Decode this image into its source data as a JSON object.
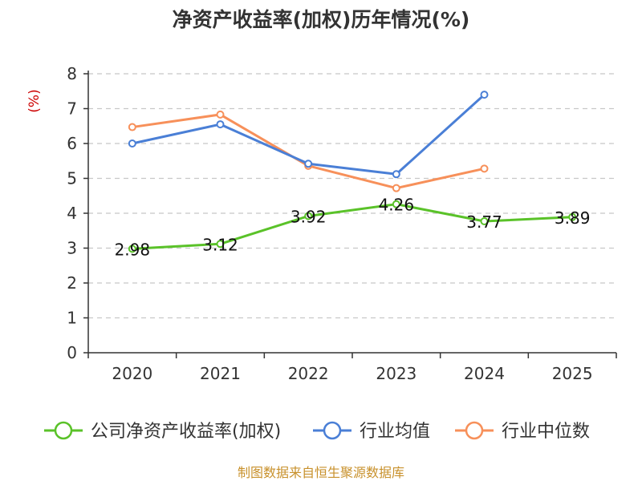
{
  "chart_data": {
    "type": "line",
    "title": "净资产收益率(加权)历年情况(%)",
    "ylabel": "(%)",
    "xlabel": "",
    "ylim": [
      0,
      8
    ],
    "y_ticks": [
      "0",
      "1",
      "2",
      "3",
      "4",
      "5",
      "6",
      "7",
      "8"
    ],
    "categories": [
      "2020",
      "2021",
      "2022",
      "2023",
      "2024",
      "2025"
    ],
    "grid": true,
    "legend_position": "bottom",
    "series": [
      {
        "name": "公司净资产收益率(加权)",
        "color": "#5ac229",
        "values": [
          2.98,
          3.12,
          3.92,
          4.26,
          3.77,
          3.89
        ],
        "labels": [
          "2.98",
          "3.12",
          "3.92",
          "4.26",
          "3.77",
          "3.89"
        ]
      },
      {
        "name": "行业均值",
        "color": "#4a7fd6",
        "values": [
          6.0,
          6.55,
          5.42,
          5.12,
          7.4,
          null
        ]
      },
      {
        "name": "行业中位数",
        "color": "#f7905a",
        "values": [
          6.47,
          6.83,
          5.36,
          4.72,
          5.28,
          null
        ]
      }
    ],
    "source": "制图数据来自恒生聚源数据库"
  }
}
